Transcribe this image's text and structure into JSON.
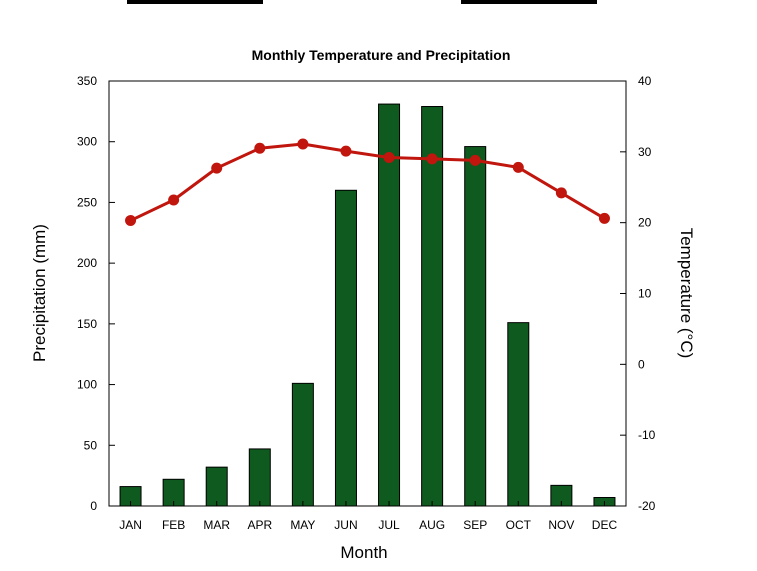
{
  "chart_data": {
    "type": "bar",
    "title": "Monthly Temperature and Precipitation",
    "xlabel": "Month",
    "ylabel": "Precipitation (mm)",
    "y2label": "Temperature (°C)",
    "categories": [
      "JAN",
      "FEB",
      "MAR",
      "APR",
      "MAY",
      "JUN",
      "JUL",
      "AUG",
      "SEP",
      "OCT",
      "NOV",
      "DEC"
    ],
    "ylim": [
      0,
      350
    ],
    "yticks": [
      "0",
      "50",
      "100",
      "150",
      "200",
      "250",
      "300",
      "350"
    ],
    "y2lim": [
      -20,
      40
    ],
    "y2ticks": [
      "-20",
      "-10",
      "0",
      "10",
      "20",
      "30",
      "40"
    ],
    "grid": false,
    "series": [
      {
        "type": "bar",
        "axis": "left",
        "values": [
          16,
          22,
          32,
          47,
          101,
          260,
          331,
          329,
          296,
          151,
          17,
          7
        ],
        "color": "#0f5a1e"
      },
      {
        "type": "line",
        "axis": "right",
        "values": [
          20.3,
          23.2,
          27.7,
          30.5,
          31.1,
          30.1,
          29.2,
          29.0,
          28.8,
          27.8,
          24.2,
          20.6
        ],
        "color": "#c0160e"
      }
    ]
  }
}
